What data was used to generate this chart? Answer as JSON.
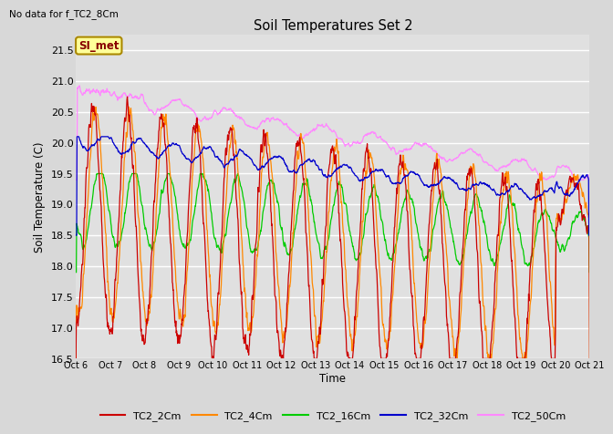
{
  "title": "Soil Temperatures Set 2",
  "xlabel": "Time",
  "ylabel": "Soil Temperature (C)",
  "note": "No data for f_TC2_8Cm",
  "annotation": "SI_met",
  "ylim": [
    16.5,
    21.75
  ],
  "yticks": [
    16.5,
    17.0,
    17.5,
    18.0,
    18.5,
    19.0,
    19.5,
    20.0,
    20.5,
    21.0,
    21.5
  ],
  "x_tick_labels": [
    "Oct 6",
    "Oct 7",
    "Oct 8",
    "Oct 9",
    "Oct 10",
    "Oct 11",
    "Oct 12",
    "Oct 13",
    "Oct 14",
    "Oct 15",
    "Oct 16",
    "Oct 17",
    "Oct 18",
    "Oct 19",
    "Oct 20",
    "Oct 21"
  ],
  "colors": {
    "TC2_2Cm": "#cc0000",
    "TC2_4Cm": "#ff8800",
    "TC2_16Cm": "#00cc00",
    "TC2_32Cm": "#0000cc",
    "TC2_50Cm": "#ff88ff"
  },
  "fig_bg_color": "#d8d8d8",
  "plot_bg_color": "#e0e0e0",
  "grid_color": "#ffffff",
  "annotation_bg": "#ffff99",
  "annotation_border": "#aa8800",
  "annotation_text_color": "#880000"
}
